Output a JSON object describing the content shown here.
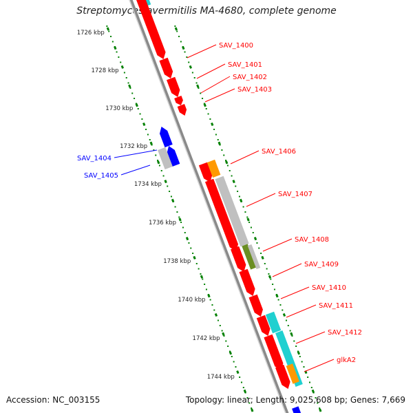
{
  "title": "Streptomyces avermitilis MA-4680, complete genome",
  "footer": {
    "accession": "Accession: NC_003155",
    "summary": "Topology: linear; Length: 9,025,608 bp; Genes: 7,669"
  },
  "ticks": [
    "1726 kbp",
    "1728 kbp",
    "1730 kbp",
    "1732 kbp",
    "1734 kbp",
    "1736 kbp",
    "1738 kbp",
    "1740 kbp",
    "1742 kbp",
    "1744 kbp"
  ],
  "gene_labels": [
    {
      "name": "SAV_1400",
      "strand": "plus"
    },
    {
      "name": "SAV_1401",
      "strand": "plus"
    },
    {
      "name": "SAV_1402",
      "strand": "plus"
    },
    {
      "name": "SAV_1403",
      "strand": "plus"
    },
    {
      "name": "SAV_1404",
      "strand": "minus"
    },
    {
      "name": "SAV_1405",
      "strand": "minus"
    },
    {
      "name": "SAV_1406",
      "strand": "plus"
    },
    {
      "name": "SAV_1407",
      "strand": "plus"
    },
    {
      "name": "SAV_1408",
      "strand": "plus"
    },
    {
      "name": "SAV_1409",
      "strand": "plus"
    },
    {
      "name": "SAV_1410",
      "strand": "plus"
    },
    {
      "name": "SAV_1411",
      "strand": "plus"
    },
    {
      "name": "SAV_1412",
      "strand": "plus"
    },
    {
      "name": "glkA2",
      "strand": "plus"
    }
  ],
  "colors": {
    "plus_gene": "#ff0000",
    "minus_gene": "#0000ff",
    "orange_feature": "#ff9900",
    "grey_feature": "#c0c0c0",
    "cyan_feature": "#20d0d0",
    "olive_feature": "#6b8e23",
    "tick_green": "#008000",
    "backbone": "#8a8a8a"
  }
}
